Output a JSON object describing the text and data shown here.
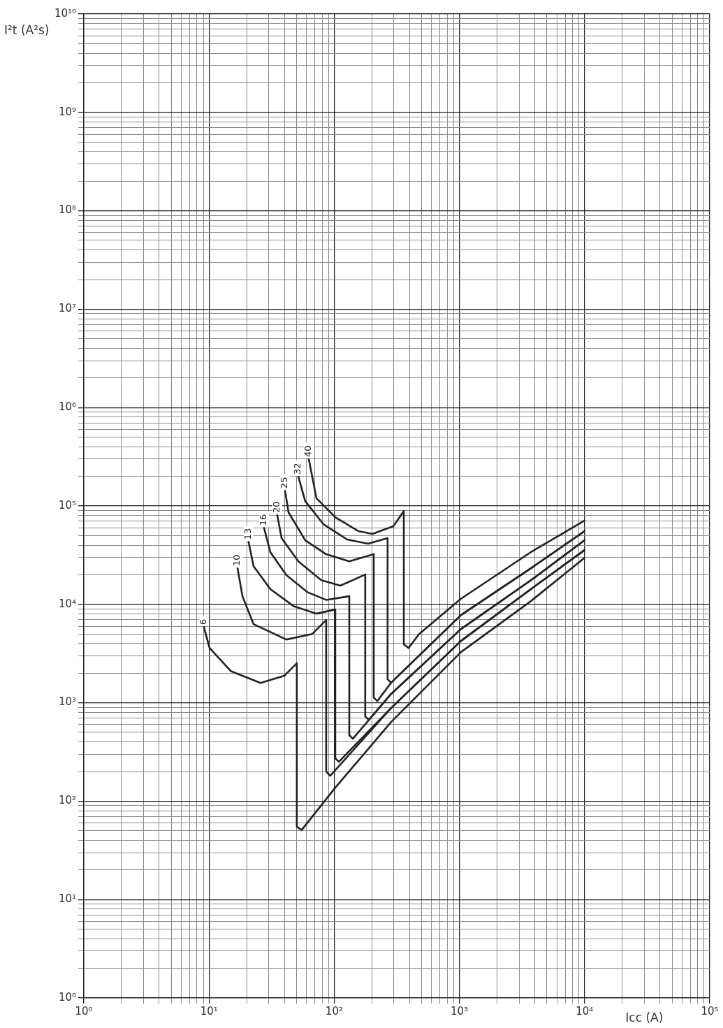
{
  "chart_data": {
    "type": "line",
    "xlabel": "Icc (A)",
    "ylabel": "I²t (A²s)",
    "log": "xy",
    "grid": true,
    "legend": false,
    "marker": "none",
    "line_style": "solid",
    "xlim": [
      1,
      100000
    ],
    "ylim": [
      1,
      10000000000
    ],
    "xticks": [
      {
        "value": 1,
        "label": "10⁰"
      },
      {
        "value": 10,
        "label": "10¹"
      },
      {
        "value": 100,
        "label": "10²"
      },
      {
        "value": 1000,
        "label": "10³"
      },
      {
        "value": 10000,
        "label": "10⁴"
      },
      {
        "value": 100000,
        "label": "10⁵"
      }
    ],
    "yticks": [
      {
        "value": 1,
        "label": "10⁰"
      },
      {
        "value": 10,
        "label": "10¹"
      },
      {
        "value": 100,
        "label": "10²"
      },
      {
        "value": 1000,
        "label": "10³"
      },
      {
        "value": 10000,
        "label": "10⁴"
      },
      {
        "value": 100000,
        "label": "10⁵"
      },
      {
        "value": 1000000,
        "label": "10⁶"
      },
      {
        "value": 10000000,
        "label": "10⁷"
      },
      {
        "value": 100000000,
        "label": "10⁸"
      },
      {
        "value": 1000000000,
        "label": "10⁹"
      },
      {
        "value": 10000000000,
        "label": "10¹⁰"
      }
    ],
    "series": [
      {
        "name": "6",
        "color": "#222222",
        "x": [
          9.1,
          10.1,
          14.9,
          25.8,
          39.9,
          50.3,
          50.3,
          55,
          102,
          285,
          1030,
          3730,
          10000
        ],
        "values": [
          5900,
          3610,
          2100,
          1590,
          1880,
          2520,
          55,
          51,
          137,
          638,
          3270,
          10800,
          29700
        ]
      },
      {
        "name": "10",
        "color": "#222222",
        "x": [
          16.9,
          18.5,
          22.7,
          41.5,
          66.8,
          86.3,
          86.3,
          93,
          285,
          1030,
          3730,
          10000
        ],
        "values": [
          23300,
          12100,
          6290,
          4390,
          5000,
          6940,
          200,
          181,
          885,
          4250,
          14300,
          35600
        ]
      },
      {
        "name": "13",
        "color": "#222222",
        "x": [
          20.7,
          22.7,
          30.9,
          47.2,
          72.1,
          102,
          102,
          109,
          285,
          1030,
          3730,
          10000
        ],
        "values": [
          43300,
          24400,
          14300,
          9620,
          8040,
          8870,
          273,
          251,
          885,
          4250,
          14300,
          35600
        ]
      },
      {
        "name": "16",
        "color": "#222222",
        "x": [
          27.5,
          30.9,
          41.5,
          61.1,
          86.3,
          132,
          132,
          141,
          285,
          1030,
          3730,
          10000
        ],
        "values": [
          60000,
          34000,
          19800,
          13300,
          11100,
          12100,
          468,
          431,
          1230,
          5610,
          17600,
          44900
        ]
      },
      {
        "name": "20",
        "color": "#222222",
        "x": [
          35.1,
          38,
          51.7,
          78.9,
          112,
          177,
          177,
          189,
          285,
          1030,
          3730,
          10000
        ],
        "values": [
          80900,
          47100,
          27400,
          17600,
          15500,
          20100,
          727,
          670,
          1230,
          5610,
          17600,
          44900
        ]
      },
      {
        "name": "25",
        "color": "#222222",
        "x": [
          40.5,
          43.2,
          58.7,
          86.3,
          132,
          207,
          207,
          221,
          285,
          1030,
          3730,
          10000
        ],
        "values": [
          143000,
          86000,
          44800,
          32300,
          27400,
          32300,
          1130,
          1040,
          1600,
          7780,
          23300,
          55500
        ]
      },
      {
        "name": "32",
        "color": "#222222",
        "x": [
          51.7,
          58.7,
          82,
          127,
          187,
          267,
          267,
          285,
          1030,
          3730,
          10000
        ],
        "values": [
          199000,
          112000,
          65300,
          45600,
          41300,
          47100,
          1730,
          1600,
          7780,
          23300,
          55500
        ]
      },
      {
        "name": "40",
        "color": "#222222",
        "x": [
          62.7,
          72.1,
          102,
          156,
          202,
          297,
          360,
          360,
          393,
          477,
          1030,
          3730,
          10000
        ],
        "values": [
          299000,
          120000,
          76900,
          55500,
          52000,
          62200,
          88900,
          3920,
          3610,
          5000,
          11400,
          34000,
          71000
        ]
      }
    ]
  }
}
